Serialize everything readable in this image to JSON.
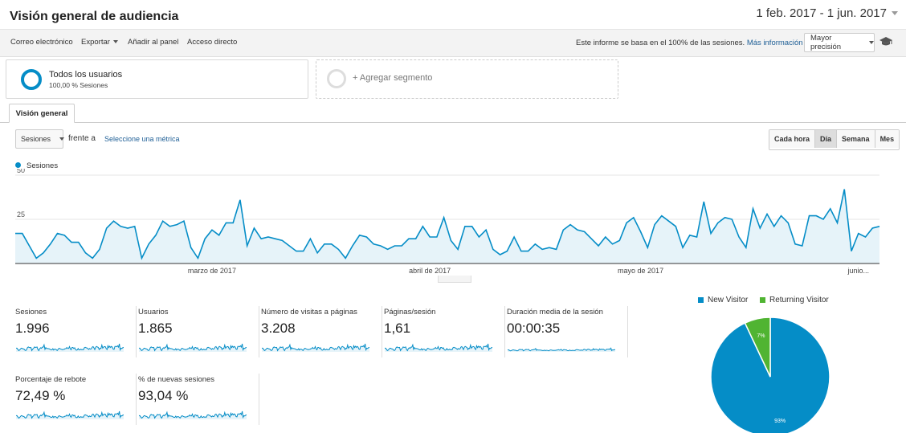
{
  "header": {
    "title": "Visión general de audiencia",
    "date_range": "1 feb. 2017 - 1 jun. 2017"
  },
  "toolbar": {
    "email": "Correo electrónico",
    "export": "Exportar",
    "add_to_panel": "Añadir al panel",
    "shortcut": "Acceso directo",
    "info_text": "Este informe se basa en el 100% de las sesiones.",
    "info_link": "Más información",
    "precision": "Mayor precisión"
  },
  "segments": {
    "active": {
      "name": "Todos los usuarios",
      "detail": "100,00 % Sesiones"
    },
    "add_label": "+ Agregar segmento"
  },
  "tabs": [
    {
      "label": "Visión general"
    }
  ],
  "controls": {
    "metric": "Sesiones",
    "versus": "frente a",
    "select_metric": "Seleccione una métrica",
    "granularity": [
      "Cada hora",
      "Día",
      "Semana",
      "Mes"
    ],
    "granularity_active": "Día"
  },
  "colors": {
    "primary": "#058dc7",
    "secondary": "#50b432",
    "link": "#1f5f96"
  },
  "chart_data": [
    {
      "type": "area",
      "series": [
        {
          "name": "Sesiones",
          "values": [
            17,
            17,
            10,
            3,
            6,
            11,
            17,
            16,
            12,
            12,
            6,
            3,
            8,
            20,
            24,
            21,
            20,
            21,
            3,
            11,
            16,
            24,
            21,
            22,
            24,
            9,
            3,
            14,
            19,
            16,
            23,
            23,
            36,
            10,
            20,
            14,
            15,
            14,
            13,
            10,
            7,
            7,
            14,
            6,
            11,
            11,
            8,
            3,
            10,
            16,
            15,
            11,
            10,
            8,
            10,
            10,
            14,
            14,
            21,
            15,
            15,
            26,
            13,
            8,
            21,
            21,
            15,
            19,
            8,
            5,
            7,
            15,
            7,
            7,
            11,
            8,
            9,
            8,
            19,
            22,
            19,
            18,
            14,
            10,
            15,
            11,
            13,
            23,
            26,
            18,
            9,
            22,
            27,
            24,
            21,
            9,
            16,
            15,
            35,
            17,
            23,
            26,
            25,
            15,
            9,
            31,
            20,
            28,
            21,
            27,
            23,
            11,
            10,
            27,
            27,
            25,
            31,
            23,
            42,
            7,
            17,
            15,
            20,
            21
          ]
        }
      ],
      "x_tick_labels": [
        "marzo de 2017",
        "abril de 2017",
        "mayo de 2017",
        "junio..."
      ],
      "y_ticks": [
        25,
        50
      ],
      "ylim": [
        0,
        50
      ],
      "grid": true,
      "legend": "top-left"
    },
    {
      "type": "pie",
      "categories": [
        "New Visitor",
        "Returning Visitor"
      ],
      "values": [
        93,
        7
      ],
      "data_labels": [
        "93%",
        "7%"
      ],
      "legend": "top"
    }
  ],
  "metrics": [
    {
      "label": "Sesiones",
      "value": "1.996"
    },
    {
      "label": "Usuarios",
      "value": "1.865"
    },
    {
      "label": "Número de visitas a páginas",
      "value": "3.208"
    },
    {
      "label": "Páginas/sesión",
      "value": "1,61"
    },
    {
      "label": "Duración media de la sesión",
      "value": "00:00:35"
    },
    {
      "label": "Porcentaje de rebote",
      "value": "72,49 %"
    },
    {
      "label": "% de nuevas sesiones",
      "value": "93,04 %"
    }
  ]
}
